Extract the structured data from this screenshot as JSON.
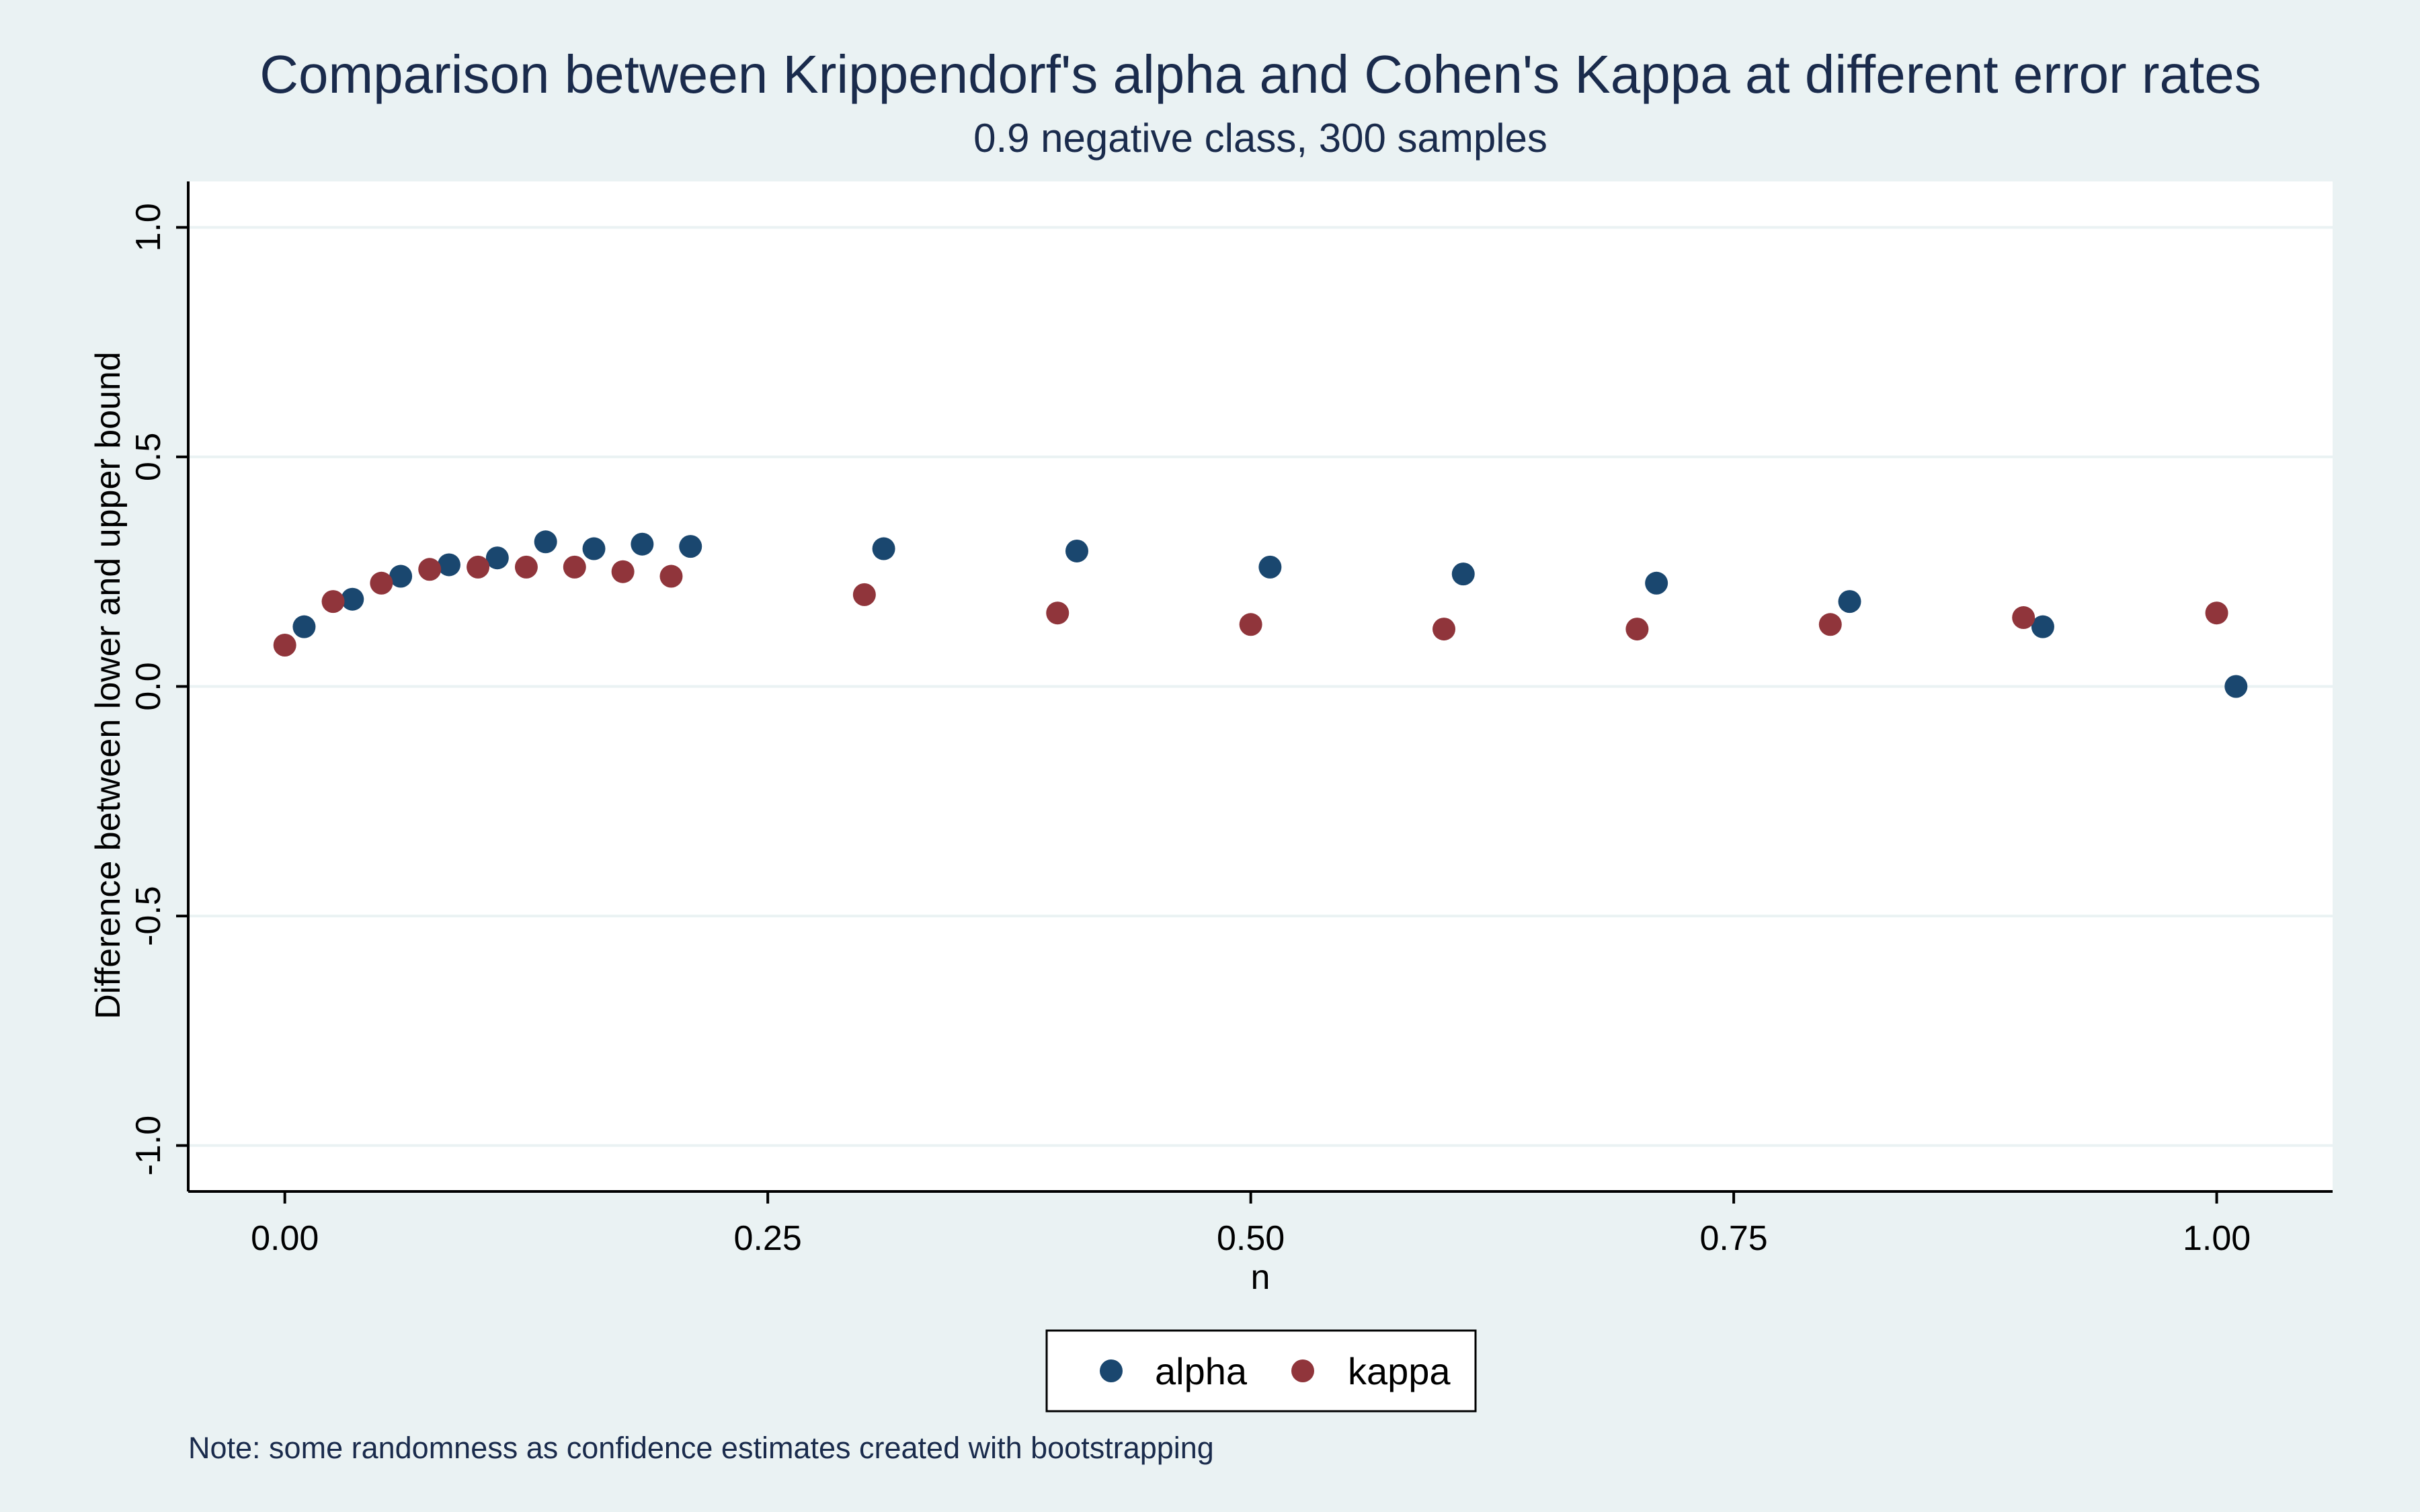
{
  "chart_data": {
    "type": "scatter",
    "title": "Comparison between Krippendorf's alpha and Cohen's Kappa at different error rates",
    "subtitle": "0.9 negative class, 300 samples",
    "xlabel": "n",
    "ylabel": "Difference between lower and upper bound",
    "xlim": [
      -0.05,
      1.06
    ],
    "ylim": [
      -1.1,
      1.1
    ],
    "x_ticks": [
      0.0,
      0.25,
      0.5,
      0.75,
      1.0
    ],
    "x_tick_labels": [
      "0.00",
      "0.25",
      "0.50",
      "0.75",
      "1.00"
    ],
    "y_ticks": [
      -1.0,
      -0.5,
      0.0,
      0.5,
      1.0
    ],
    "y_tick_labels": [
      "-1.0",
      "-0.5",
      "0.0",
      "0.5",
      "1.0"
    ],
    "grid": "horizontal",
    "legend_position": "bottom-center",
    "note": "Note: some randomness as confidence estimates created with bootstrapping",
    "series": [
      {
        "name": "alpha",
        "color": "#1a476f",
        "x": [
          0.01,
          0.035,
          0.06,
          0.085,
          0.11,
          0.135,
          0.16,
          0.185,
          0.21,
          0.31,
          0.41,
          0.51,
          0.61,
          0.71,
          0.81,
          0.91,
          1.01
        ],
        "y": [
          0.13,
          0.19,
          0.24,
          0.265,
          0.28,
          0.315,
          0.3,
          0.31,
          0.305,
          0.3,
          0.295,
          0.26,
          0.245,
          0.225,
          0.185,
          0.13,
          0.0
        ]
      },
      {
        "name": "kappa",
        "color": "#90353b",
        "x": [
          0.0,
          0.025,
          0.05,
          0.075,
          0.1,
          0.125,
          0.15,
          0.175,
          0.2,
          0.3,
          0.4,
          0.5,
          0.6,
          0.7,
          0.8,
          0.9,
          1.0
        ],
        "y": [
          0.09,
          0.185,
          0.225,
          0.255,
          0.26,
          0.26,
          0.26,
          0.25,
          0.24,
          0.2,
          0.16,
          0.135,
          0.125,
          0.125,
          0.135,
          0.15,
          0.16
        ]
      }
    ]
  }
}
